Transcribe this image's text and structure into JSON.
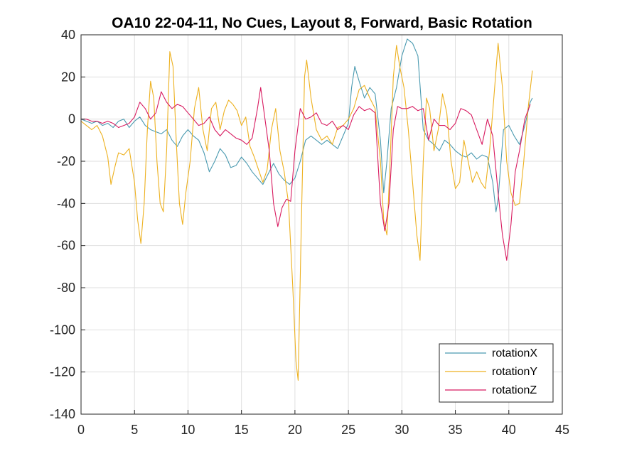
{
  "chart_data": {
    "type": "line",
    "title": "OA10 22-04-11, No Cues, Layout 8, Forward, Basic Rotation",
    "xlabel": "",
    "ylabel": "",
    "xlim": [
      0,
      45
    ],
    "ylim": [
      -140,
      40
    ],
    "xticks": [
      0,
      5,
      10,
      15,
      20,
      25,
      30,
      35,
      40,
      45
    ],
    "yticks": [
      -140,
      -120,
      -100,
      -80,
      -60,
      -40,
      -20,
      0,
      20,
      40
    ],
    "grid": true,
    "legend_position": "bottom-right",
    "series": [
      {
        "name": "rotationX",
        "color": "#4A9AB0",
        "points": [
          [
            0,
            0
          ],
          [
            0.5,
            -1
          ],
          [
            1,
            -2
          ],
          [
            1.5,
            -1
          ],
          [
            2,
            -3
          ],
          [
            2.5,
            -2
          ],
          [
            3,
            -4
          ],
          [
            3.5,
            -1
          ],
          [
            4,
            0
          ],
          [
            4.5,
            -4
          ],
          [
            5,
            -1
          ],
          [
            5.5,
            1
          ],
          [
            6,
            -3
          ],
          [
            6.5,
            -5
          ],
          [
            7,
            -6
          ],
          [
            7.5,
            -7
          ],
          [
            8,
            -5
          ],
          [
            8.5,
            -10
          ],
          [
            9,
            -13
          ],
          [
            9.5,
            -8
          ],
          [
            10,
            -5
          ],
          [
            10.5,
            -8
          ],
          [
            11,
            -10
          ],
          [
            11.5,
            -16
          ],
          [
            12,
            -25
          ],
          [
            12.5,
            -20
          ],
          [
            13,
            -14
          ],
          [
            13.5,
            -17
          ],
          [
            14,
            -23
          ],
          [
            14.5,
            -22
          ],
          [
            15,
            -18
          ],
          [
            15.5,
            -21
          ],
          [
            16,
            -25
          ],
          [
            16.5,
            -28
          ],
          [
            17,
            -31
          ],
          [
            17.5,
            -26
          ],
          [
            18,
            -21
          ],
          [
            18.5,
            -26
          ],
          [
            19,
            -29
          ],
          [
            19.5,
            -31
          ],
          [
            20,
            -28
          ],
          [
            20.5,
            -20
          ],
          [
            21,
            -10
          ],
          [
            21.5,
            -8
          ],
          [
            22,
            -10
          ],
          [
            22.5,
            -12
          ],
          [
            23,
            -10
          ],
          [
            23.5,
            -12
          ],
          [
            24,
            -14
          ],
          [
            24.5,
            -8
          ],
          [
            25,
            -2
          ],
          [
            25.3,
            15
          ],
          [
            25.6,
            25
          ],
          [
            26,
            18
          ],
          [
            26.5,
            10
          ],
          [
            27,
            15
          ],
          [
            27.5,
            12
          ],
          [
            28,
            -10
          ],
          [
            28.3,
            -35
          ],
          [
            28.6,
            -20
          ],
          [
            29,
            5
          ],
          [
            29.5,
            15
          ],
          [
            30,
            30
          ],
          [
            30.5,
            38
          ],
          [
            31,
            36
          ],
          [
            31.5,
            30
          ],
          [
            32,
            -5
          ],
          [
            32.5,
            -10
          ],
          [
            33,
            -12
          ],
          [
            33.5,
            -15
          ],
          [
            34,
            -10
          ],
          [
            34.5,
            -12
          ],
          [
            35,
            -15
          ],
          [
            35.5,
            -17
          ],
          [
            36,
            -18
          ],
          [
            36.5,
            -16
          ],
          [
            37,
            -19
          ],
          [
            37.5,
            -17
          ],
          [
            38,
            -18
          ],
          [
            38.5,
            -30
          ],
          [
            38.8,
            -44
          ],
          [
            39,
            -38
          ],
          [
            39.5,
            -5
          ],
          [
            40,
            -3
          ],
          [
            40.5,
            -8
          ],
          [
            41,
            -12
          ],
          [
            41.5,
            -3
          ],
          [
            42,
            8
          ],
          [
            42.2,
            10
          ]
        ]
      },
      {
        "name": "rotationY",
        "color": "#EDB120",
        "points": [
          [
            0,
            -1
          ],
          [
            0.5,
            -3
          ],
          [
            1,
            -5
          ],
          [
            1.5,
            -3
          ],
          [
            2,
            -8
          ],
          [
            2.5,
            -18
          ],
          [
            2.8,
            -31
          ],
          [
            3.2,
            -22
          ],
          [
            3.5,
            -16
          ],
          [
            4,
            -17
          ],
          [
            4.5,
            -14
          ],
          [
            5,
            -30
          ],
          [
            5.3,
            -48
          ],
          [
            5.6,
            -59
          ],
          [
            5.9,
            -40
          ],
          [
            6.2,
            -5
          ],
          [
            6.5,
            18
          ],
          [
            6.8,
            10
          ],
          [
            7.1,
            -20
          ],
          [
            7.4,
            -40
          ],
          [
            7.7,
            -44
          ],
          [
            8,
            -15
          ],
          [
            8.3,
            32
          ],
          [
            8.6,
            25
          ],
          [
            8.9,
            -10
          ],
          [
            9.2,
            -40
          ],
          [
            9.5,
            -50
          ],
          [
            9.8,
            -35
          ],
          [
            10.2,
            -20
          ],
          [
            10.6,
            5
          ],
          [
            11,
            15
          ],
          [
            11.4,
            -5
          ],
          [
            11.8,
            -15
          ],
          [
            12.2,
            5
          ],
          [
            12.6,
            8
          ],
          [
            13,
            -5
          ],
          [
            13.4,
            4
          ],
          [
            13.8,
            9
          ],
          [
            14.2,
            7
          ],
          [
            14.6,
            4
          ],
          [
            15,
            -3
          ],
          [
            15.4,
            1
          ],
          [
            15.8,
            -13
          ],
          [
            16.2,
            -18
          ],
          [
            16.6,
            -24
          ],
          [
            17,
            -30
          ],
          [
            17.4,
            -24
          ],
          [
            17.8,
            -5
          ],
          [
            18.2,
            5
          ],
          [
            18.6,
            -15
          ],
          [
            19,
            -25
          ],
          [
            19.4,
            -40
          ],
          [
            19.8,
            -80
          ],
          [
            20.1,
            -115
          ],
          [
            20.3,
            -124
          ],
          [
            20.6,
            -50
          ],
          [
            20.9,
            20
          ],
          [
            21.1,
            28
          ],
          [
            21.5,
            10
          ],
          [
            22,
            -5
          ],
          [
            22.5,
            -10
          ],
          [
            23,
            -8
          ],
          [
            23.5,
            -12
          ],
          [
            24,
            -4
          ],
          [
            24.5,
            -3
          ],
          [
            25,
            0
          ],
          [
            25.5,
            5
          ],
          [
            26,
            14
          ],
          [
            26.5,
            16
          ],
          [
            27,
            10
          ],
          [
            27.5,
            5
          ],
          [
            28,
            -20
          ],
          [
            28.3,
            -48
          ],
          [
            28.6,
            -55
          ],
          [
            28.9,
            -20
          ],
          [
            29.2,
            20
          ],
          [
            29.5,
            35
          ],
          [
            29.8,
            25
          ],
          [
            30.2,
            15
          ],
          [
            30.6,
            -5
          ],
          [
            31,
            -30
          ],
          [
            31.4,
            -55
          ],
          [
            31.7,
            -67
          ],
          [
            32,
            -20
          ],
          [
            32.3,
            10
          ],
          [
            32.6,
            5
          ],
          [
            33,
            -15
          ],
          [
            33.4,
            -5
          ],
          [
            33.8,
            12
          ],
          [
            34.2,
            3
          ],
          [
            34.6,
            -20
          ],
          [
            35,
            -33
          ],
          [
            35.4,
            -30
          ],
          [
            35.8,
            -10
          ],
          [
            36.2,
            -20
          ],
          [
            36.6,
            -30
          ],
          [
            37,
            -25
          ],
          [
            37.4,
            -30
          ],
          [
            37.8,
            -33
          ],
          [
            38.2,
            -15
          ],
          [
            38.6,
            10
          ],
          [
            39,
            36
          ],
          [
            39.4,
            15
          ],
          [
            39.8,
            -20
          ],
          [
            40.2,
            -35
          ],
          [
            40.6,
            -41
          ],
          [
            41,
            -40
          ],
          [
            41.4,
            -20
          ],
          [
            41.8,
            5
          ],
          [
            42.2,
            23
          ]
        ]
      },
      {
        "name": "rotationZ",
        "color": "#D81B60",
        "points": [
          [
            0,
            0
          ],
          [
            0.5,
            0
          ],
          [
            1,
            -1
          ],
          [
            1.5,
            -1
          ],
          [
            2,
            -2
          ],
          [
            2.5,
            -1
          ],
          [
            3,
            -2
          ],
          [
            3.5,
            -4
          ],
          [
            4,
            -3
          ],
          [
            4.5,
            -2
          ],
          [
            5,
            1
          ],
          [
            5.5,
            8
          ],
          [
            6,
            5
          ],
          [
            6.5,
            0
          ],
          [
            7,
            3
          ],
          [
            7.5,
            13
          ],
          [
            8,
            8
          ],
          [
            8.5,
            5
          ],
          [
            9,
            7
          ],
          [
            9.5,
            6
          ],
          [
            10,
            3
          ],
          [
            10.5,
            0
          ],
          [
            11,
            -3
          ],
          [
            11.5,
            -2
          ],
          [
            12,
            1
          ],
          [
            12.5,
            -5
          ],
          [
            13,
            -8
          ],
          [
            13.5,
            -5
          ],
          [
            14,
            -7
          ],
          [
            14.5,
            -9
          ],
          [
            15,
            -10
          ],
          [
            15.5,
            -12
          ],
          [
            16,
            -9
          ],
          [
            16.5,
            5
          ],
          [
            16.8,
            15
          ],
          [
            17.2,
            0
          ],
          [
            17.6,
            -15
          ],
          [
            18,
            -40
          ],
          [
            18.4,
            -51
          ],
          [
            18.8,
            -42
          ],
          [
            19.2,
            -38
          ],
          [
            19.6,
            -39
          ],
          [
            20,
            -15
          ],
          [
            20.5,
            5
          ],
          [
            21,
            0
          ],
          [
            21.5,
            1
          ],
          [
            22,
            3
          ],
          [
            22.5,
            -2
          ],
          [
            23,
            -3
          ],
          [
            23.5,
            -1
          ],
          [
            24,
            -5
          ],
          [
            24.5,
            -3
          ],
          [
            25,
            -5
          ],
          [
            25.5,
            2
          ],
          [
            26,
            6
          ],
          [
            26.5,
            4
          ],
          [
            27,
            5
          ],
          [
            27.5,
            3
          ],
          [
            28,
            -40
          ],
          [
            28.4,
            -53
          ],
          [
            28.8,
            -40
          ],
          [
            29.2,
            -5
          ],
          [
            29.6,
            6
          ],
          [
            30,
            5
          ],
          [
            30.5,
            5
          ],
          [
            31,
            6
          ],
          [
            31.5,
            4
          ],
          [
            32,
            5
          ],
          [
            32.5,
            -10
          ],
          [
            33,
            0
          ],
          [
            33.5,
            -3
          ],
          [
            34,
            -3
          ],
          [
            34.5,
            -5
          ],
          [
            35,
            -2
          ],
          [
            35.5,
            5
          ],
          [
            36,
            4
          ],
          [
            36.5,
            2
          ],
          [
            37,
            -5
          ],
          [
            37.5,
            -12
          ],
          [
            38,
            0
          ],
          [
            38.5,
            -8
          ],
          [
            39,
            -35
          ],
          [
            39.4,
            -55
          ],
          [
            39.8,
            -67
          ],
          [
            40.2,
            -50
          ],
          [
            40.6,
            -25
          ],
          [
            41,
            -15
          ],
          [
            41.5,
            0
          ],
          [
            42,
            7
          ]
        ]
      }
    ]
  }
}
